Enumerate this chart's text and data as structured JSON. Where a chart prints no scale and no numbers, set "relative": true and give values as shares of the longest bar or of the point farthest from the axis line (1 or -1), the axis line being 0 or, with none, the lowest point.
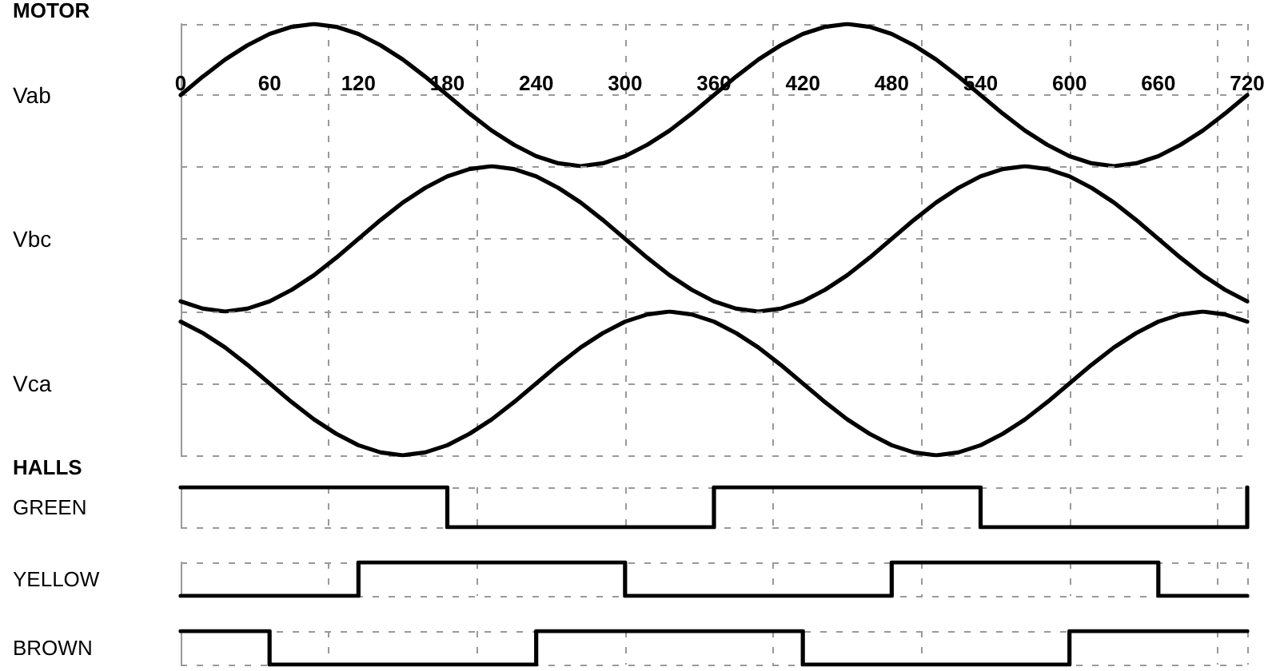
{
  "chart_data": [
    {
      "type": "line",
      "title": "MOTOR",
      "ylabel": "Vab",
      "relative": true,
      "x": [
        0,
        15,
        30,
        45,
        60,
        75,
        90,
        105,
        120,
        135,
        150,
        165,
        180,
        195,
        210,
        225,
        240,
        255,
        270,
        285,
        300,
        315,
        330,
        345,
        360,
        375,
        390,
        405,
        420,
        435,
        450,
        465,
        480,
        495,
        510,
        525,
        540,
        555,
        570,
        585,
        600,
        615,
        630,
        645,
        660,
        675,
        690,
        705,
        720
      ],
      "xlim": [
        0,
        720
      ],
      "xticks": [
        0,
        60,
        120,
        180,
        240,
        300,
        360,
        420,
        480,
        540,
        600,
        660,
        720
      ],
      "grid": true,
      "marker": "none",
      "tick_labels": "x",
      "series": [
        {
          "color": "#000000",
          "values": [
            0.5,
            0.63,
            0.75,
            0.85,
            0.93,
            0.98,
            1,
            0.98,
            0.93,
            0.85,
            0.75,
            0.63,
            0.5,
            0.37,
            0.25,
            0.15,
            0.07,
            0.02,
            0,
            0.02,
            0.07,
            0.15,
            0.25,
            0.37,
            0.5,
            0.63,
            0.75,
            0.85,
            0.93,
            0.98,
            1,
            0.98,
            0.93,
            0.85,
            0.75,
            0.63,
            0.5,
            0.37,
            0.25,
            0.15,
            0.07,
            0.02,
            0,
            0.02,
            0.07,
            0.15,
            0.25,
            0.37,
            0.5
          ]
        }
      ]
    },
    {
      "type": "line",
      "ylabel": "Vbc",
      "relative": true,
      "x": [
        0,
        15,
        30,
        45,
        60,
        75,
        90,
        105,
        120,
        135,
        150,
        165,
        180,
        195,
        210,
        225,
        240,
        255,
        270,
        285,
        300,
        315,
        330,
        345,
        360,
        375,
        390,
        405,
        420,
        435,
        450,
        465,
        480,
        495,
        510,
        525,
        540,
        555,
        570,
        585,
        600,
        615,
        630,
        645,
        660,
        675,
        690,
        705,
        720
      ],
      "xlim": [
        0,
        720
      ],
      "xticks": [
        0,
        60,
        120,
        180,
        240,
        300,
        360,
        420,
        480,
        540,
        600,
        660,
        720
      ],
      "grid": true,
      "marker": "none",
      "tick_labels": false,
      "series": [
        {
          "color": "#000000",
          "values": [
            0.07,
            0.02,
            0,
            0.02,
            0.07,
            0.15,
            0.25,
            0.37,
            0.5,
            0.63,
            0.75,
            0.85,
            0.93,
            0.98,
            1,
            0.98,
            0.93,
            0.85,
            0.75,
            0.63,
            0.5,
            0.37,
            0.25,
            0.15,
            0.07,
            0.02,
            0,
            0.02,
            0.07,
            0.15,
            0.25,
            0.37,
            0.5,
            0.63,
            0.75,
            0.85,
            0.93,
            0.98,
            1,
            0.98,
            0.93,
            0.85,
            0.75,
            0.63,
            0.5,
            0.37,
            0.25,
            0.15,
            0.07
          ]
        }
      ]
    },
    {
      "type": "line",
      "ylabel": "Vca",
      "relative": true,
      "x": [
        0,
        15,
        30,
        45,
        60,
        75,
        90,
        105,
        120,
        135,
        150,
        165,
        180,
        195,
        210,
        225,
        240,
        255,
        270,
        285,
        300,
        315,
        330,
        345,
        360,
        375,
        390,
        405,
        420,
        435,
        450,
        465,
        480,
        495,
        510,
        525,
        540,
        555,
        570,
        585,
        600,
        615,
        630,
        645,
        660,
        675,
        690,
        705,
        720
      ],
      "xlim": [
        0,
        720
      ],
      "xticks": [
        0,
        60,
        120,
        180,
        240,
        300,
        360,
        420,
        480,
        540,
        600,
        660,
        720
      ],
      "grid": true,
      "marker": "none",
      "tick_labels": false,
      "series": [
        {
          "color": "#000000",
          "values": [
            0.93,
            0.85,
            0.75,
            0.63,
            0.5,
            0.37,
            0.25,
            0.15,
            0.07,
            0.02,
            0,
            0.02,
            0.07,
            0.15,
            0.25,
            0.37,
            0.5,
            0.63,
            0.75,
            0.85,
            0.93,
            0.98,
            1,
            0.98,
            0.93,
            0.85,
            0.75,
            0.63,
            0.5,
            0.37,
            0.25,
            0.15,
            0.07,
            0.02,
            0,
            0.02,
            0.07,
            0.15,
            0.25,
            0.37,
            0.5,
            0.63,
            0.75,
            0.85,
            0.93,
            0.98,
            1,
            0.98,
            0.93
          ]
        }
      ]
    },
    {
      "type": "step",
      "title": "HALLS",
      "ylabel": "GREEN",
      "relative": true,
      "x": [
        0,
        180,
        360,
        540,
        720
      ],
      "xlim": [
        0,
        720
      ],
      "xticks": [
        0,
        60,
        120,
        180,
        240,
        300,
        360,
        420,
        480,
        540,
        600,
        660,
        720
      ],
      "grid": true,
      "marker": "none",
      "tick_labels": false,
      "series": [
        {
          "color": "#000000",
          "values": [
            1,
            0,
            1,
            0,
            1
          ]
        }
      ]
    },
    {
      "type": "step",
      "ylabel": "YELLOW",
      "relative": true,
      "x": [
        0,
        120,
        300,
        480,
        660,
        720
      ],
      "xlim": [
        0,
        720
      ],
      "xticks": [
        0,
        60,
        120,
        180,
        240,
        300,
        360,
        420,
        480,
        540,
        600,
        660,
        720
      ],
      "grid": true,
      "marker": "none",
      "tick_labels": false,
      "series": [
        {
          "color": "#000000",
          "values": [
            0,
            1,
            0,
            1,
            0,
            0
          ]
        }
      ]
    },
    {
      "type": "step",
      "ylabel": "BROWN",
      "relative": true,
      "x": [
        0,
        60,
        240,
        420,
        600,
        720
      ],
      "xlim": [
        0,
        720
      ],
      "xticks": [
        0,
        60,
        120,
        180,
        240,
        300,
        360,
        420,
        480,
        540,
        600,
        660,
        720
      ],
      "grid": true,
      "marker": "none",
      "tick_labels": false,
      "series": [
        {
          "color": "#000000",
          "values": [
            1,
            0,
            1,
            0,
            1,
            1
          ]
        }
      ]
    }
  ]
}
